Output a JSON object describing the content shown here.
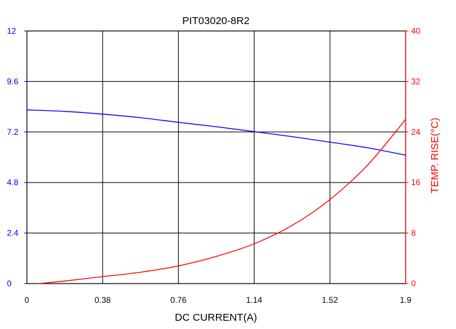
{
  "chart_data": {
    "type": "line",
    "title": "PIT03020-8R2",
    "xlabel": "DC CURRENT(A)",
    "ylabel_left": "",
    "ylabel_right": "TEMP. RISE(°C)",
    "xlim": [
      0,
      1.9
    ],
    "ylim_left": [
      0,
      12
    ],
    "ylim_right": [
      0,
      40
    ],
    "x_ticks": [
      "0",
      "0.38",
      "0.76",
      "1.14",
      "1.52",
      "1.9"
    ],
    "y_left_ticks": [
      "0",
      "2.4",
      "4.8",
      "7.2",
      "9.6",
      "12"
    ],
    "y_right_ticks": [
      "0",
      "8",
      "16",
      "24",
      "32",
      "40"
    ],
    "grid": true,
    "colors": {
      "left_axis": "#0000ff",
      "right_axis": "#ff0000",
      "grid": "#000000"
    },
    "series": [
      {
        "axis": "left",
        "color": "#0000ff",
        "x": [
          0,
          0.19,
          0.38,
          0.57,
          0.76,
          0.95,
          1.14,
          1.33,
          1.52,
          1.71,
          1.9
        ],
        "y": [
          8.25,
          8.18,
          8.05,
          7.88,
          7.66,
          7.45,
          7.22,
          6.98,
          6.72,
          6.45,
          6.1
        ]
      },
      {
        "axis": "right",
        "color": "#ff0000",
        "x": [
          0.06,
          0.19,
          0.38,
          0.57,
          0.76,
          0.95,
          1.14,
          1.33,
          1.52,
          1.71,
          1.9
        ],
        "y": [
          0,
          0.4,
          1.1,
          1.8,
          2.8,
          4.3,
          6.3,
          9.2,
          13.3,
          18.8,
          26
        ]
      }
    ]
  }
}
